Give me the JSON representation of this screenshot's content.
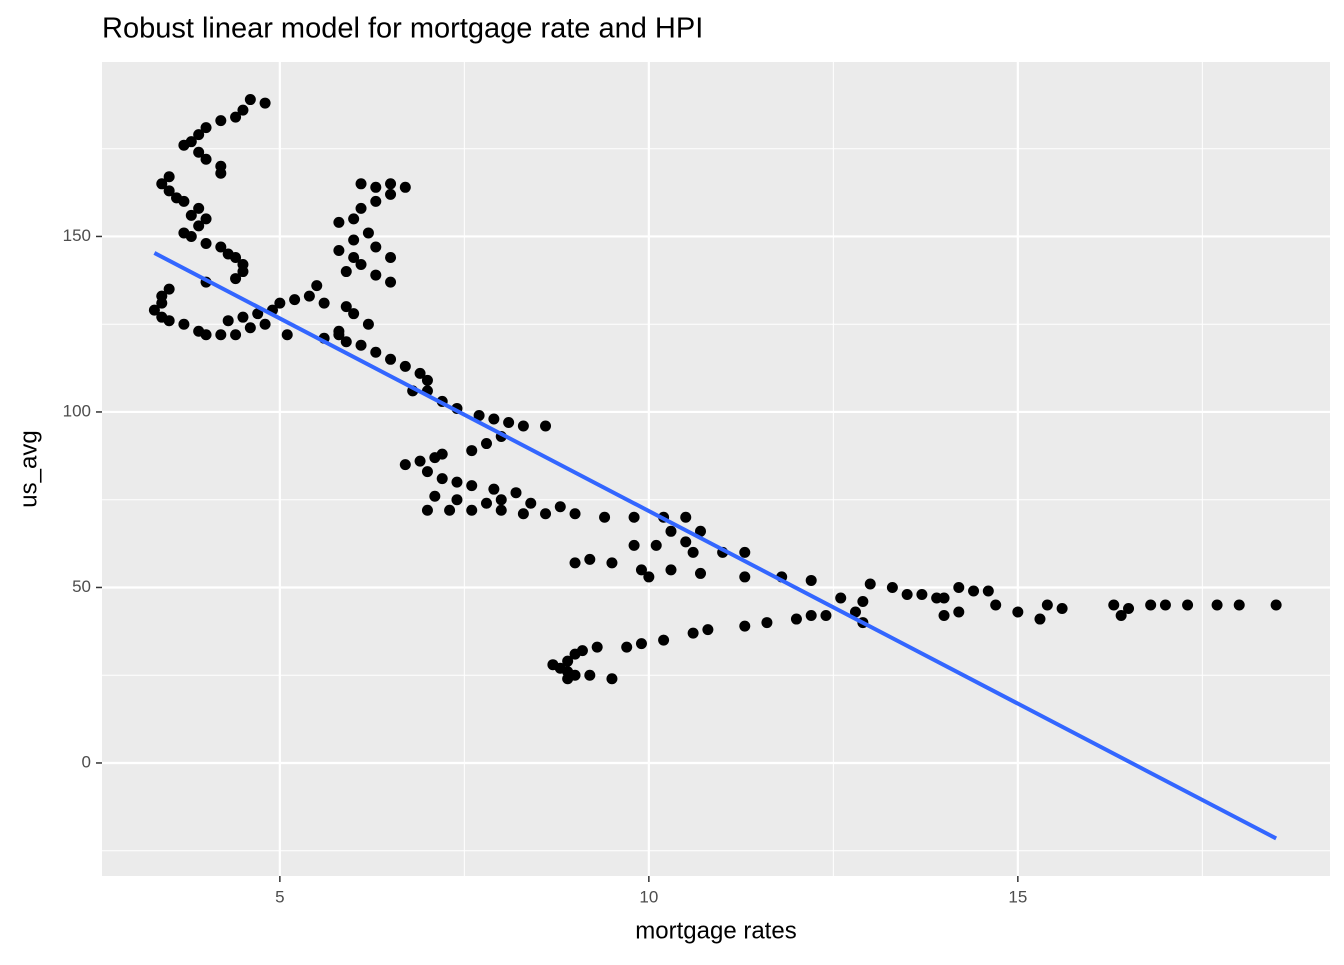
{
  "chart_data": {
    "type": "scatter",
    "title": "Robust linear model for mortgage rate and HPI",
    "x_label": "mortgage rates",
    "y_label": "us_avg",
    "xlim": [
      2.59,
      19.23
    ],
    "ylim": [
      -32.2,
      199.7
    ],
    "xticks": [
      5,
      10,
      15
    ],
    "yticks": [
      0,
      50,
      100,
      150
    ],
    "xminor": [
      7.5,
      12.5,
      17.5
    ],
    "yminor": [
      -25,
      25,
      75,
      125,
      175
    ],
    "grid": true,
    "color": "#000000",
    "x": [
      4.6,
      4.8,
      4.5,
      4.4,
      4.2,
      4.0,
      3.9,
      3.8,
      3.7,
      3.9,
      4.0,
      4.2,
      4.2,
      3.5,
      3.4,
      3.5,
      3.6,
      3.7,
      3.9,
      3.8,
      4.0,
      3.9,
      3.7,
      3.8,
      4.0,
      4.2,
      4.3,
      4.4,
      4.5,
      4.5,
      4.4,
      4.0,
      3.3,
      3.4,
      3.5,
      3.7,
      3.9,
      4.0,
      4.2,
      4.4,
      4.6,
      4.8,
      4.3,
      4.5,
      4.7,
      4.9,
      5.0,
      5.2,
      5.4,
      5.5,
      3.4,
      3.5,
      3.4,
      5.1,
      5.8,
      5.6,
      6.1,
      6.3,
      6.5,
      6.7,
      6.5,
      6.3,
      6.1,
      6.0,
      5.8,
      6.2,
      6.0,
      6.3,
      6.5,
      6.1,
      5.9,
      6.3,
      6.5,
      5.8,
      6.0,
      5.6,
      5.9,
      6.0,
      6.2,
      5.8,
      5.9,
      6.1,
      6.3,
      6.5,
      6.7,
      6.9,
      7.0,
      7.0,
      7.2,
      7.4,
      6.8,
      7.7,
      7.9,
      8.1,
      8.3,
      8.6,
      8.0,
      7.8,
      7.6,
      6.7,
      6.9,
      7.1,
      7.2,
      7.0,
      7.2,
      7.4,
      7.6,
      7.9,
      8.2,
      8.0,
      8.4,
      8.8,
      7.1,
      7.4,
      7.8,
      7.0,
      7.3,
      7.6,
      8.0,
      8.3,
      8.6,
      9.0,
      9.4,
      9.8,
      10.2,
      10.5,
      10.3,
      10.7,
      10.5,
      10.1,
      9.8,
      10.6,
      11.0,
      11.3,
      9.5,
      9.9,
      10.3,
      10.7,
      11.3,
      10.0,
      9.2,
      9.0,
      11.8,
      12.2,
      12.2,
      12.6,
      12.9,
      13.0,
      13.3,
      13.5,
      13.7,
      14.0,
      14.2,
      14.4,
      14.6,
      14.2,
      14.0,
      14.7,
      15.0,
      15.3,
      15.4,
      15.6,
      16.3,
      16.4,
      16.5,
      16.8,
      17.0,
      17.3,
      17.7,
      18.0,
      18.5,
      13.9,
      12.9,
      8.7,
      8.8,
      8.9,
      9.0,
      8.9,
      9.0,
      9.1,
      9.3,
      9.5,
      9.7,
      9.9,
      10.2,
      10.6,
      10.8,
      11.3,
      11.6,
      12.0,
      12.4,
      12.8,
      9.2,
      8.9
    ],
    "y": [
      189,
      188,
      186,
      184,
      183,
      181,
      179,
      177,
      176,
      174,
      172,
      170,
      168,
      167,
      165,
      163,
      161,
      160,
      158,
      156,
      155,
      153,
      151,
      150,
      148,
      147,
      145,
      144,
      142,
      140,
      138,
      137,
      129,
      127,
      126,
      125,
      123,
      122,
      122,
      122,
      124,
      125,
      126,
      127,
      128,
      129,
      131,
      132,
      133,
      136,
      133,
      135,
      131,
      122,
      122,
      121,
      165,
      164,
      165,
      164,
      162,
      160,
      158,
      155,
      154,
      151,
      149,
      147,
      144,
      142,
      140,
      139,
      137,
      146,
      144,
      131,
      130,
      128,
      125,
      123,
      120,
      119,
      117,
      115,
      113,
      111,
      109,
      106,
      103,
      101,
      106,
      99,
      98,
      97,
      96,
      96,
      93,
      91,
      89,
      85,
      86,
      87,
      88,
      83,
      81,
      80,
      79,
      78,
      77,
      75,
      74,
      73,
      76,
      75,
      74,
      72,
      72,
      72,
      72,
      71,
      71,
      71,
      70,
      70,
      70,
      70,
      66,
      66,
      63,
      62,
      62,
      60,
      60,
      60,
      57,
      55,
      55,
      54,
      53,
      53,
      58,
      57,
      53,
      52,
      42,
      47,
      46,
      51,
      50,
      48,
      48,
      47,
      50,
      49,
      49,
      43,
      42,
      45,
      43,
      41,
      45,
      44,
      45,
      42,
      44,
      45,
      45,
      45,
      45,
      45,
      45,
      47,
      40,
      28,
      27,
      26,
      25,
      29,
      31,
      32,
      33,
      24,
      33,
      34,
      35,
      37,
      38,
      39,
      40,
      41,
      42,
      43,
      25,
      24
    ],
    "fit": {
      "x": [
        3.3,
        18.5
      ],
      "y": [
        145.3,
        -21.5
      ],
      "color": "#3366ff"
    }
  }
}
